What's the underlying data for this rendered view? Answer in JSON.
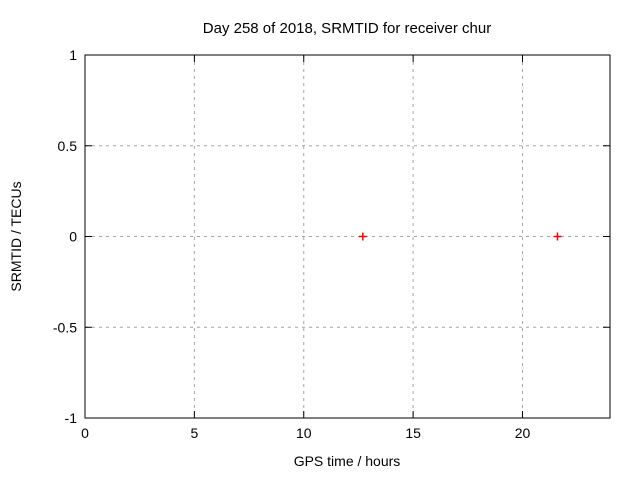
{
  "chart_data": {
    "type": "scatter",
    "title": "Day 258 of 2018, SRMTID for receiver chur",
    "xlabel": "GPS time / hours",
    "ylabel": "SRMTID / TECUs",
    "xlim": [
      0,
      24
    ],
    "ylim": [
      -1,
      1
    ],
    "xticks": [
      0,
      5,
      10,
      15,
      20
    ],
    "yticks": [
      -1,
      -0.5,
      0,
      0.5,
      1
    ],
    "grid": true,
    "legend": "none",
    "marker": "plus",
    "marker_color": "#ff0000",
    "grid_color": "#a6a6a6",
    "border_color": "#000000",
    "points": [
      {
        "x": 12.7,
        "y": 0
      },
      {
        "x": 21.6,
        "y": 0
      }
    ]
  }
}
